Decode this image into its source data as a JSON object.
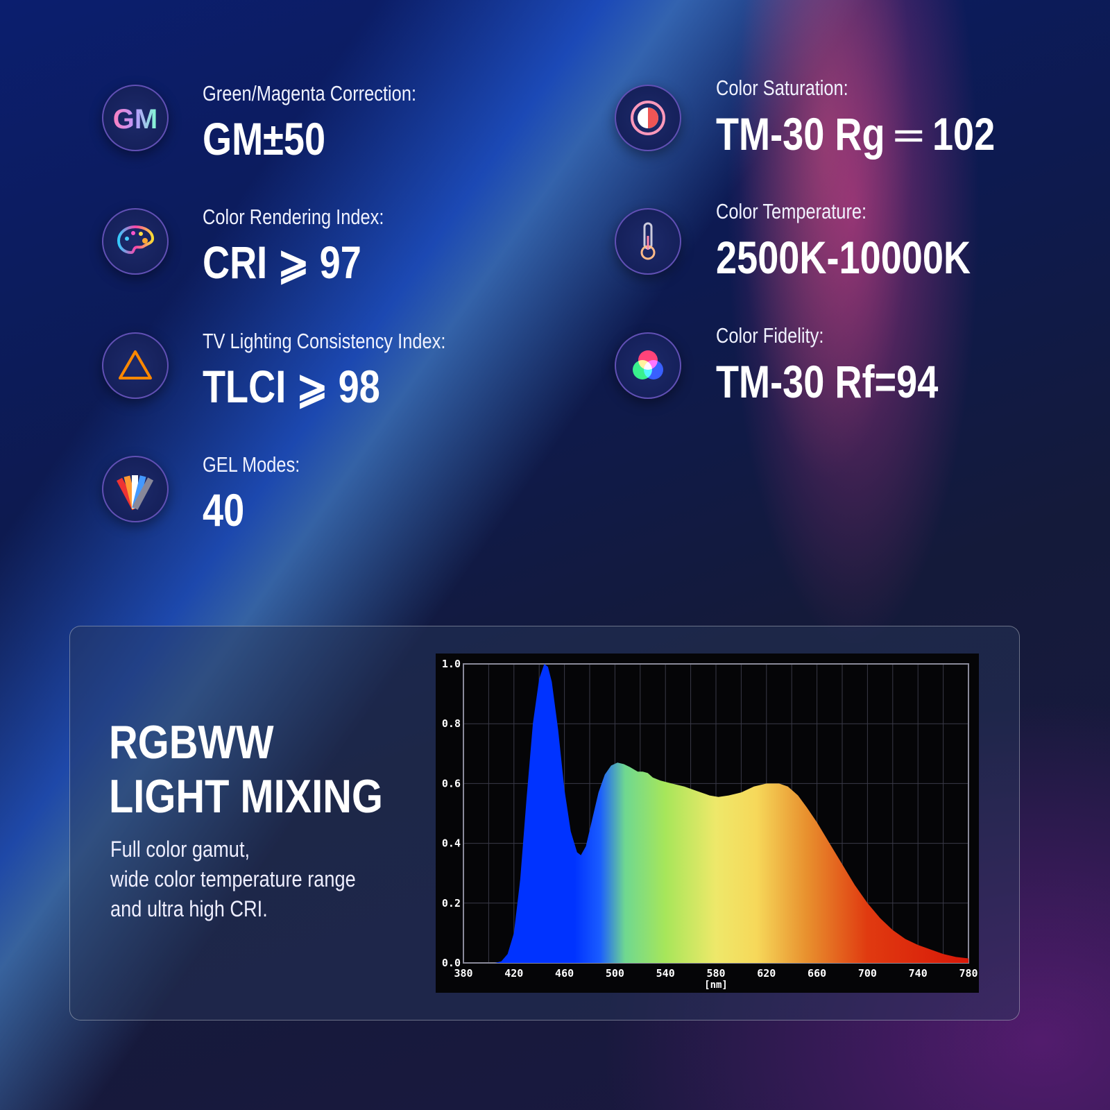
{
  "specs_left": [
    {
      "label": "Green/Magenta Correction:",
      "value": "GM±50",
      "icon": "gm-icon",
      "icon_text": "GM"
    },
    {
      "label": "Color Rendering Index:",
      "value": "CRI ⩾ 97",
      "icon": "palette-icon"
    },
    {
      "label": "TV Lighting Consistency Index:",
      "value": "TLCI ⩾ 98",
      "icon": "triangle-icon"
    },
    {
      "label": "GEL Modes:",
      "value": "40",
      "icon": "gel-swatch-icon"
    }
  ],
  "specs_right": [
    {
      "label": "Color Saturation:",
      "value": "TM-30 Rg ═ 102",
      "icon": "saturation-icon"
    },
    {
      "label": "Color Temperature:",
      "value": "2500K-10000K",
      "icon": "thermometer-icon"
    },
    {
      "label": "Color Fidelity:",
      "value": "TM-30 Rf=94",
      "icon": "rgb-circles-icon"
    }
  ],
  "panel": {
    "title_line1": "RGBWW",
    "title_line2": "LIGHT MIXING",
    "desc_line1": "Full color gamut,",
    "desc_line2": "wide color temperature range",
    "desc_line3": "and ultra high CRI."
  },
  "chart_data": {
    "type": "area",
    "xlabel": "[nm]",
    "xlim": [
      380,
      780
    ],
    "ylim": [
      0,
      1.0
    ],
    "xticks": [
      "380",
      "420",
      "460",
      "500",
      "540",
      "580",
      "620",
      "660",
      "700",
      "740",
      "780"
    ],
    "yticks": [
      "0.0",
      "0.2",
      "0.4",
      "0.6",
      "0.8",
      "1.0"
    ],
    "grid": true,
    "x": [
      380,
      405,
      410,
      415,
      420,
      425,
      430,
      435,
      440,
      444,
      447,
      450,
      455,
      460,
      465,
      470,
      473,
      477,
      482,
      487,
      492,
      497,
      502,
      507,
      512,
      518,
      522,
      526,
      530,
      536,
      545,
      555,
      565,
      575,
      582,
      590,
      600,
      610,
      620,
      630,
      637,
      645,
      652,
      660,
      670,
      680,
      690,
      700,
      710,
      720,
      730,
      740,
      750,
      760,
      770,
      780
    ],
    "y": [
      0,
      0,
      0.005,
      0.03,
      0.1,
      0.28,
      0.55,
      0.8,
      0.95,
      1.0,
      0.99,
      0.94,
      0.78,
      0.58,
      0.44,
      0.37,
      0.36,
      0.39,
      0.48,
      0.57,
      0.63,
      0.66,
      0.67,
      0.665,
      0.655,
      0.64,
      0.64,
      0.635,
      0.62,
      0.61,
      0.6,
      0.59,
      0.575,
      0.56,
      0.555,
      0.56,
      0.57,
      0.59,
      0.6,
      0.6,
      0.59,
      0.56,
      0.52,
      0.47,
      0.4,
      0.33,
      0.26,
      0.2,
      0.15,
      0.11,
      0.08,
      0.06,
      0.045,
      0.03,
      0.02,
      0.015
    ]
  }
}
